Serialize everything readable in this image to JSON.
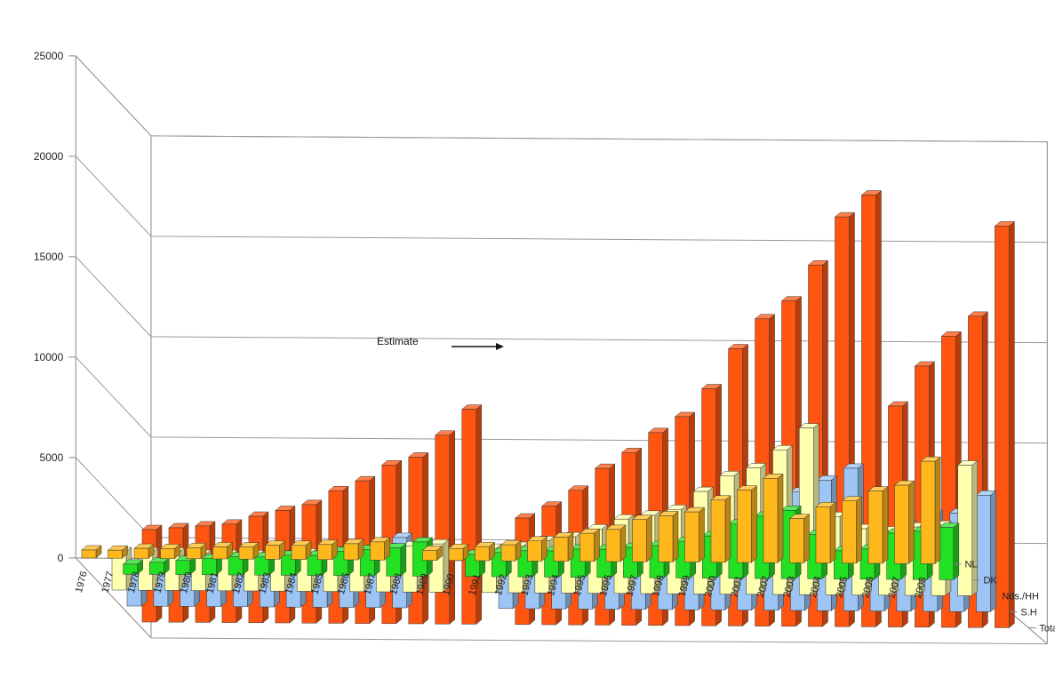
{
  "chart_data": {
    "type": "bar",
    "subtype": "3d-grouped-bar",
    "categories": [
      "1976",
      "1977",
      "1978",
      "1979",
      "1980",
      "1981",
      "1982",
      "1983",
      "1984",
      "1985",
      "1986",
      "1987",
      "1988",
      "1989",
      "1990",
      "1991",
      "1992",
      "1993",
      "1994",
      "1995",
      "1996",
      "1997",
      "1998",
      "1999",
      "2000",
      "2001",
      "2002",
      "2003",
      "2004",
      "2005",
      "2006",
      "2007",
      "2008"
    ],
    "series": [
      {
        "name": "NL",
        "color": "#FFB81C",
        "values": [
          400,
          400,
          500,
          500,
          550,
          600,
          600,
          700,
          700,
          750,
          800,
          900,
          null,
          500,
          600,
          700,
          800,
          1000,
          1200,
          1400,
          1600,
          2100,
          2300,
          2500,
          3100,
          3600,
          4200,
          2200,
          2800,
          3100,
          3600,
          3900,
          5100
        ]
      },
      {
        "name": "DK",
        "color": "#22E022",
        "values": [
          null,
          500,
          600,
          700,
          800,
          900,
          900,
          1000,
          1000,
          1200,
          1300,
          1400,
          1700,
          null,
          1100,
          1200,
          1300,
          1300,
          1400,
          1400,
          1500,
          1600,
          1800,
          2100,
          2700,
          3100,
          3400,
          2200,
          1400,
          1500,
          2300,
          2400,
          2600
        ]
      },
      {
        "name": "Nds./HH",
        "color": "#FFFFB0",
        "values": [
          1900,
          1900,
          1900,
          1800,
          1800,
          1800,
          1800,
          1900,
          2000,
          2100,
          2200,
          2300,
          2400,
          null,
          2200,
          2300,
          2600,
          2800,
          3200,
          3700,
          3900,
          4200,
          5100,
          5900,
          6300,
          7200,
          8300,
          3900,
          3300,
          3200,
          3400,
          3500,
          6500
        ]
      },
      {
        "name": "S.H",
        "color": "#9CC4F4",
        "values": [
          2000,
          2100,
          2100,
          2200,
          2300,
          2300,
          2300,
          2400,
          2900,
          2900,
          3500,
          null,
          null,
          null,
          1700,
          1900,
          2100,
          2500,
          2700,
          2800,
          3100,
          3200,
          4000,
          4500,
          5200,
          5900,
          6500,
          7100,
          3500,
          4300,
          4800,
          4900,
          5800
        ]
      },
      {
        "name": "Total",
        "color": "#FF5511",
        "values": [
          4600,
          4700,
          4800,
          4900,
          5300,
          5600,
          5900,
          6600,
          7100,
          7900,
          8300,
          9400,
          10700,
          null,
          5300,
          5900,
          6700,
          7800,
          8600,
          9600,
          10400,
          11800,
          13800,
          15300,
          16200,
          18000,
          20400,
          21500,
          11000,
          13000,
          14500,
          15500,
          20000
        ]
      }
    ],
    "ylim": [
      0,
      25000
    ],
    "yticks": [
      0,
      5000,
      10000,
      15000,
      20000,
      25000
    ],
    "annotation": "Estimate",
    "grid": true
  }
}
